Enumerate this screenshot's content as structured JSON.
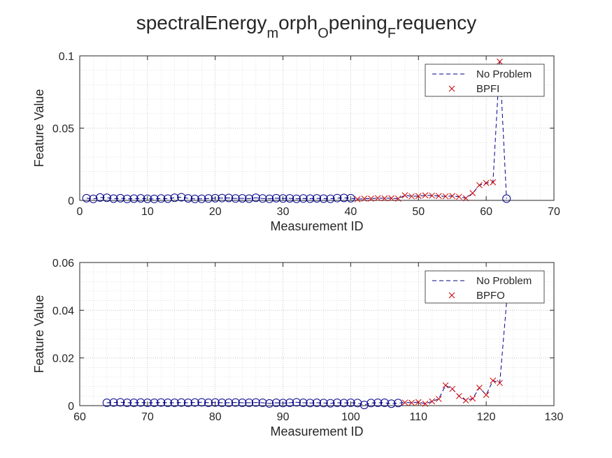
{
  "figure": {
    "title_parts": [
      {
        "text": "spectralEnergy",
        "sub": false
      },
      {
        "text": "m",
        "sub": true
      },
      {
        "text": "orph",
        "sub": false
      },
      {
        "text": "O",
        "sub": true
      },
      {
        "text": "pening",
        "sub": false
      },
      {
        "text": "F",
        "sub": true
      },
      {
        "text": "requency",
        "sub": false
      }
    ]
  },
  "chart_data": [
    {
      "type": "line",
      "xlabel": "Measurement ID",
      "ylabel": "Feature Value",
      "xlim": [
        0,
        70
      ],
      "ylim": [
        0,
        0.1
      ],
      "xticks": [
        0,
        10,
        20,
        30,
        40,
        50,
        60,
        70
      ],
      "xtick_labels": [
        "0",
        "10",
        "20",
        "30",
        "40",
        "50",
        "60",
        "70"
      ],
      "yticks": [
        0,
        0.05,
        0.1
      ],
      "ytick_labels": [
        "0",
        "0.05",
        "0.1"
      ],
      "grid": true,
      "legend_position": "top-right",
      "colors": {
        "no_problem": "#00008b",
        "fault": "#cc0000"
      },
      "legend": [
        {
          "label": "No Problem",
          "marker": "dashed-line",
          "color": "#00008b"
        },
        {
          "label": "BPFI",
          "marker": "x",
          "color": "#cc0000"
        }
      ],
      "no_problem": {
        "name": "No Problem",
        "x": [
          1,
          2,
          3,
          4,
          5,
          6,
          7,
          8,
          9,
          10,
          11,
          12,
          13,
          14,
          15,
          16,
          17,
          18,
          19,
          20,
          21,
          22,
          23,
          24,
          25,
          26,
          27,
          28,
          29,
          30,
          31,
          32,
          33,
          34,
          35,
          36,
          37,
          38,
          39,
          40
        ],
        "y": [
          0.0015,
          0.001,
          0.002,
          0.0018,
          0.0012,
          0.0015,
          0.001,
          0.0012,
          0.0014,
          0.0011,
          0.001,
          0.0013,
          0.0012,
          0.0018,
          0.0022,
          0.0014,
          0.001,
          0.0011,
          0.0013,
          0.0015,
          0.0016,
          0.0017,
          0.0013,
          0.0014,
          0.0012,
          0.0018,
          0.0013,
          0.0011,
          0.0015,
          0.0013,
          0.0014,
          0.0011,
          0.0013,
          0.0012,
          0.0014,
          0.0012,
          0.0011,
          0.0016,
          0.0017,
          0.0015
        ]
      },
      "fault": {
        "name": "BPFI",
        "x": [
          41,
          42,
          43,
          44,
          45,
          46,
          47,
          48,
          49,
          50,
          51,
          52,
          53,
          54,
          55,
          56,
          57,
          58,
          59,
          60,
          61,
          62
        ],
        "y": [
          0.0008,
          0.0012,
          0.0012,
          0.0016,
          0.0014,
          0.0015,
          0.0012,
          0.0035,
          0.0028,
          0.003,
          0.0035,
          0.0033,
          0.003,
          0.0028,
          0.003,
          0.0025,
          0.0015,
          0.005,
          0.0105,
          0.012,
          0.0125,
          0.096
        ]
      },
      "tail": {
        "x": 63,
        "y": 0.0012,
        "marker": "circle"
      }
    },
    {
      "type": "line",
      "xlabel": "Measurement ID",
      "ylabel": "Feature Value",
      "xlim": [
        60,
        130
      ],
      "ylim": [
        0,
        0.06
      ],
      "xticks": [
        60,
        70,
        80,
        90,
        100,
        110,
        120,
        130
      ],
      "xtick_labels": [
        "60",
        "70",
        "80",
        "90",
        "100",
        "110",
        "120",
        "130"
      ],
      "yticks": [
        0,
        0.02,
        0.04,
        0.06
      ],
      "ytick_labels": [
        "0",
        "0.02",
        "0.04",
        "0.06"
      ],
      "grid": true,
      "legend_position": "top-right",
      "colors": {
        "no_problem": "#00008b",
        "fault": "#cc0000"
      },
      "legend": [
        {
          "label": "No Problem",
          "marker": "dashed-line",
          "color": "#00008b"
        },
        {
          "label": "BPFO",
          "marker": "x",
          "color": "#cc0000"
        }
      ],
      "no_problem": {
        "name": "No Problem",
        "x": [
          64,
          65,
          66,
          67,
          68,
          69,
          70,
          71,
          72,
          73,
          74,
          75,
          76,
          77,
          78,
          79,
          80,
          81,
          82,
          83,
          84,
          85,
          86,
          87,
          88,
          89,
          90,
          91,
          92,
          93,
          94,
          95,
          96,
          97,
          98,
          99,
          100,
          101,
          102,
          103,
          104,
          105,
          106,
          107
        ],
        "y": [
          0.0012,
          0.0013,
          0.0014,
          0.0012,
          0.0012,
          0.0013,
          0.0012,
          0.0012,
          0.0013,
          0.0012,
          0.0012,
          0.0013,
          0.0012,
          0.0013,
          0.0014,
          0.0012,
          0.0013,
          0.0012,
          0.0012,
          0.0013,
          0.0012,
          0.0012,
          0.0013,
          0.0012,
          0.0009,
          0.0012,
          0.0011,
          0.0012,
          0.0014,
          0.0012,
          0.0011,
          0.0012,
          0.0011,
          0.001,
          0.0012,
          0.0011,
          0.0012,
          0.0011,
          0.0003,
          0.0011,
          0.0012,
          0.0012,
          0.0008,
          0.0011
        ]
      },
      "fault": {
        "name": "BPFO",
        "x": [
          108,
          109,
          110,
          111,
          112,
          113,
          114,
          115,
          116,
          117,
          118,
          119,
          120,
          121,
          122
        ],
        "y": [
          0.0013,
          0.0012,
          0.0015,
          0.0008,
          0.0018,
          0.0028,
          0.0085,
          0.007,
          0.004,
          0.0022,
          0.003,
          0.0075,
          0.0045,
          0.0105,
          0.0095
        ]
      },
      "tail": {
        "x": 123,
        "y": 0.043,
        "marker": "none"
      }
    }
  ]
}
